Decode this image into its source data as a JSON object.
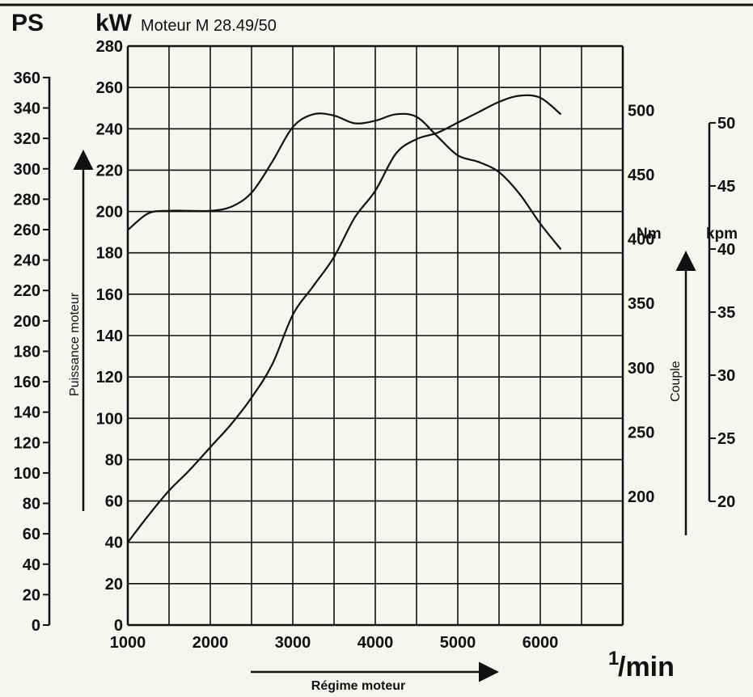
{
  "header": {
    "ps_unit": "PS",
    "kw_unit": "kW",
    "engine_title": "Moteur M 28.49/50"
  },
  "chart_data": {
    "type": "line",
    "title": "Moteur M 28.49/50",
    "xlabel": "Régime moteur",
    "x_unit": "1/min",
    "x_unit_numerator": "1",
    "x_unit_denominator": "/min",
    "xlim": [
      1000,
      7000
    ],
    "x_grid_step": 500,
    "x_ticks": [
      1000,
      2000,
      3000,
      4000,
      5000,
      6000
    ],
    "grid": true,
    "left_axes": {
      "power_label": "Puissance moteur",
      "kw": {
        "unit": "kW",
        "range": [
          0,
          280
        ],
        "ticks": [
          0,
          20,
          40,
          60,
          80,
          100,
          120,
          140,
          160,
          180,
          200,
          220,
          240,
          260,
          280
        ]
      },
      "ps": {
        "unit": "PS",
        "ticks": [
          0,
          20,
          40,
          60,
          80,
          100,
          120,
          140,
          160,
          180,
          200,
          220,
          240,
          260,
          280,
          300,
          320,
          340,
          360
        ]
      }
    },
    "right_axes": {
      "torque_label": "Couple",
      "nm": {
        "unit": "Nm",
        "range": [
          100,
          550
        ],
        "ticks": [
          200,
          250,
          300,
          350,
          400,
          450,
          500
        ]
      },
      "kpm": {
        "unit": "kpm",
        "ticks": [
          20,
          25,
          30,
          35,
          40,
          45,
          50
        ]
      }
    },
    "series": [
      {
        "axis": "kW",
        "x": [
          1000,
          1250,
          1500,
          1750,
          2000,
          2250,
          2500,
          2750,
          3000,
          3250,
          3500,
          3750,
          4000,
          4250,
          4500,
          4750,
          5000,
          5250,
          5500,
          5750,
          6000,
          6250
        ],
        "values": [
          40,
          53,
          65,
          75,
          86,
          97,
          110,
          126,
          150,
          164,
          178,
          197,
          210,
          228,
          235,
          238,
          243,
          248,
          253,
          256,
          255,
          247
        ]
      },
      {
        "axis": "Nm",
        "x": [
          1000,
          1250,
          1500,
          1750,
          2000,
          2250,
          2500,
          2750,
          3000,
          3250,
          3500,
          3750,
          4000,
          4250,
          4500,
          4750,
          5000,
          5250,
          5500,
          5750,
          6000,
          6250
        ],
        "values": [
          407,
          420,
          422,
          422,
          422,
          425,
          436,
          460,
          487,
          497,
          496,
          490,
          492,
          497,
          495,
          480,
          465,
          460,
          452,
          435,
          412,
          392
        ]
      }
    ]
  }
}
